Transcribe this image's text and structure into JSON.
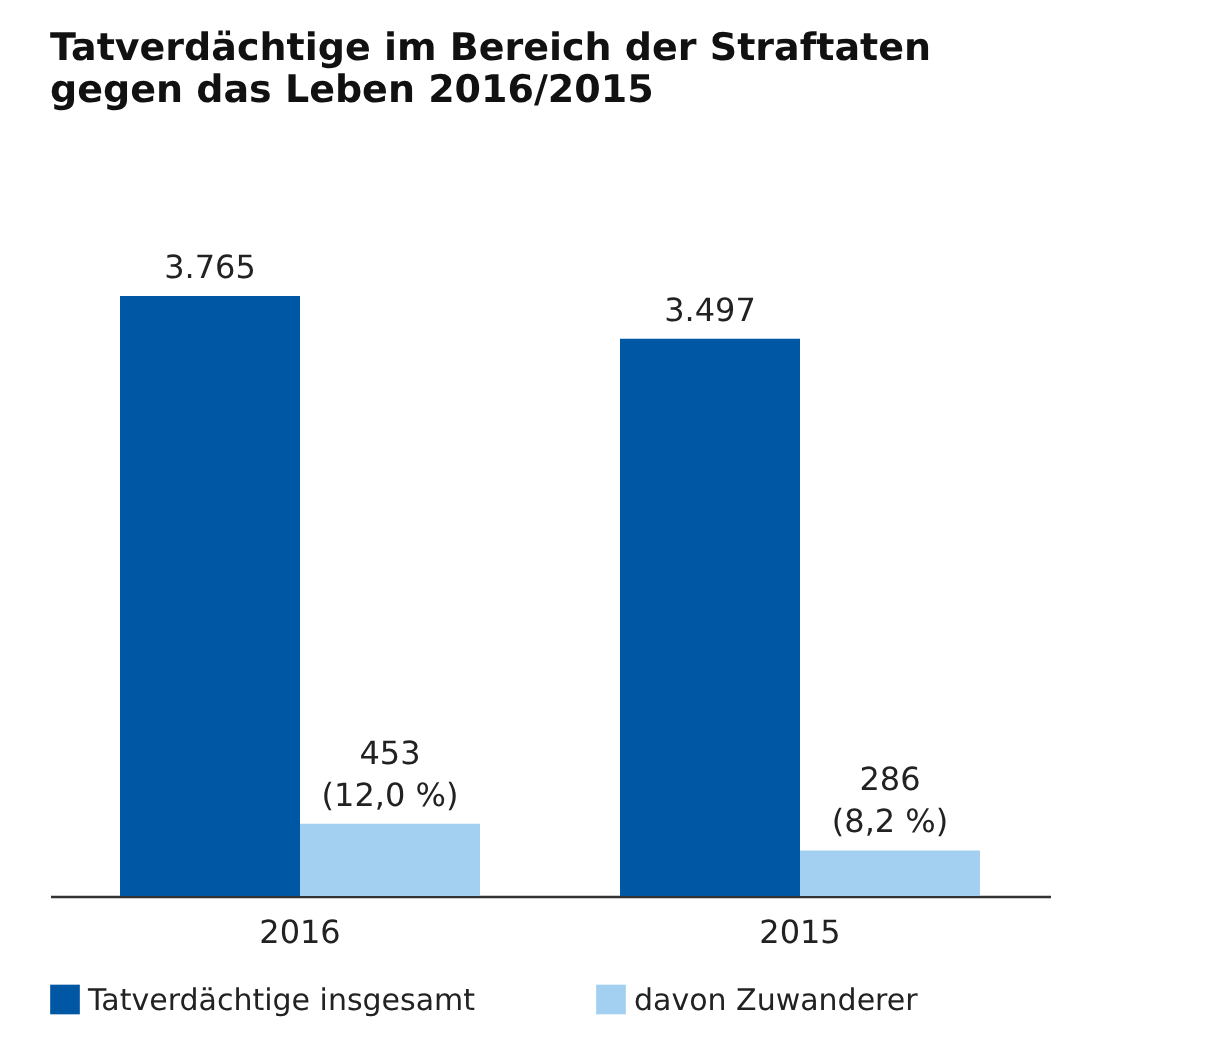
{
  "chart_data": {
    "type": "bar",
    "title": [
      "Tatverdächtige im Bereich der Straftaten",
      "gegen das Leben 2016/2015"
    ],
    "categories": [
      "2016",
      "2015"
    ],
    "series": [
      {
        "name": "Tatverdächtige insgesamt",
        "color": "#0057a4",
        "values": [
          3765,
          3497
        ],
        "value_labels": [
          "3.765",
          "3.497"
        ]
      },
      {
        "name": "davon Zuwanderer",
        "color": "#a3cff0",
        "values": [
          453,
          286
        ],
        "value_labels": [
          "453\n(12,0 %)",
          "286\n(8,2 %)"
        ]
      }
    ],
    "legend": "bottom",
    "grid": false
  }
}
